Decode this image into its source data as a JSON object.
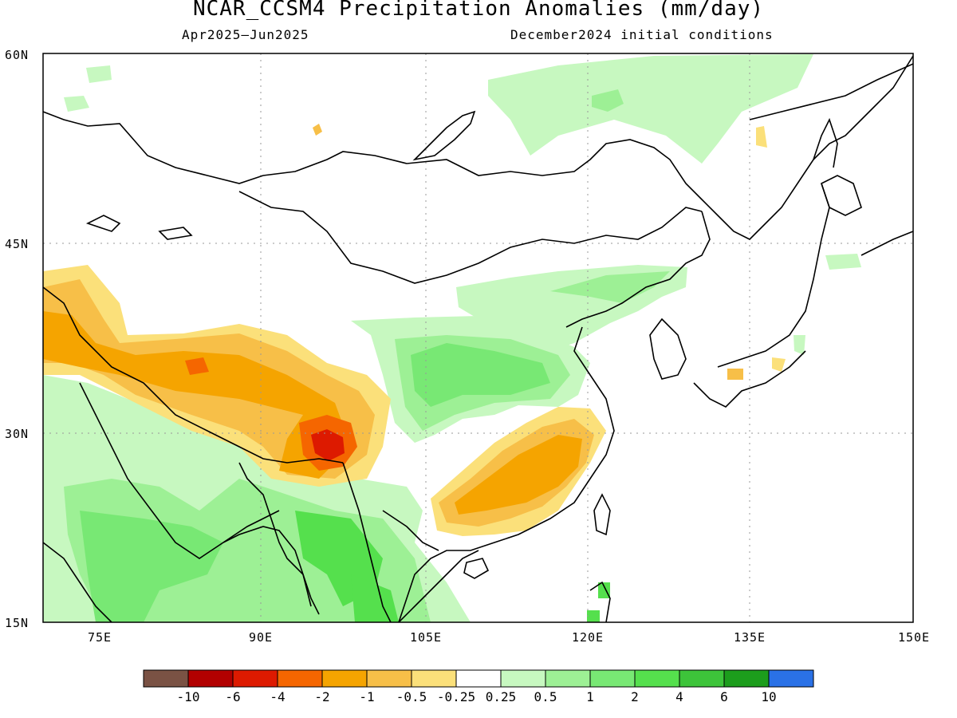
{
  "title": "NCAR_CCSM4 Precipitation Anomalies (mm/day)",
  "subtitle_left": "Apr2025—Jun2025",
  "subtitle_right": "December2024 initial conditions",
  "lat_labels": [
    "60N",
    "45N",
    "30N",
    "15N"
  ],
  "lon_labels": [
    "75E",
    "90E",
    "105E",
    "120E",
    "135E",
    "150E"
  ],
  "colorbar": {
    "colors": [
      "#7a5244",
      "#b20000",
      "#dd1a00",
      "#f56600",
      "#f5a400",
      "#f7bf48",
      "#fbe07a",
      "#ffffff",
      "#c7f8c0",
      "#9df095",
      "#78e874",
      "#55e04d",
      "#3dc43a",
      "#1c9d1c",
      "#2a71e6"
    ],
    "labels": [
      "-10",
      "-6",
      "-4",
      "-2",
      "-1",
      "-0.5",
      "-0.25",
      "0.25",
      "0.5",
      "1",
      "2",
      "4",
      "6",
      "10"
    ]
  },
  "map": {
    "lon_range": [
      70,
      150
    ],
    "lat_range": [
      15,
      60
    ],
    "gridlines": "dotted",
    "coastlines": true,
    "borders": true
  }
}
